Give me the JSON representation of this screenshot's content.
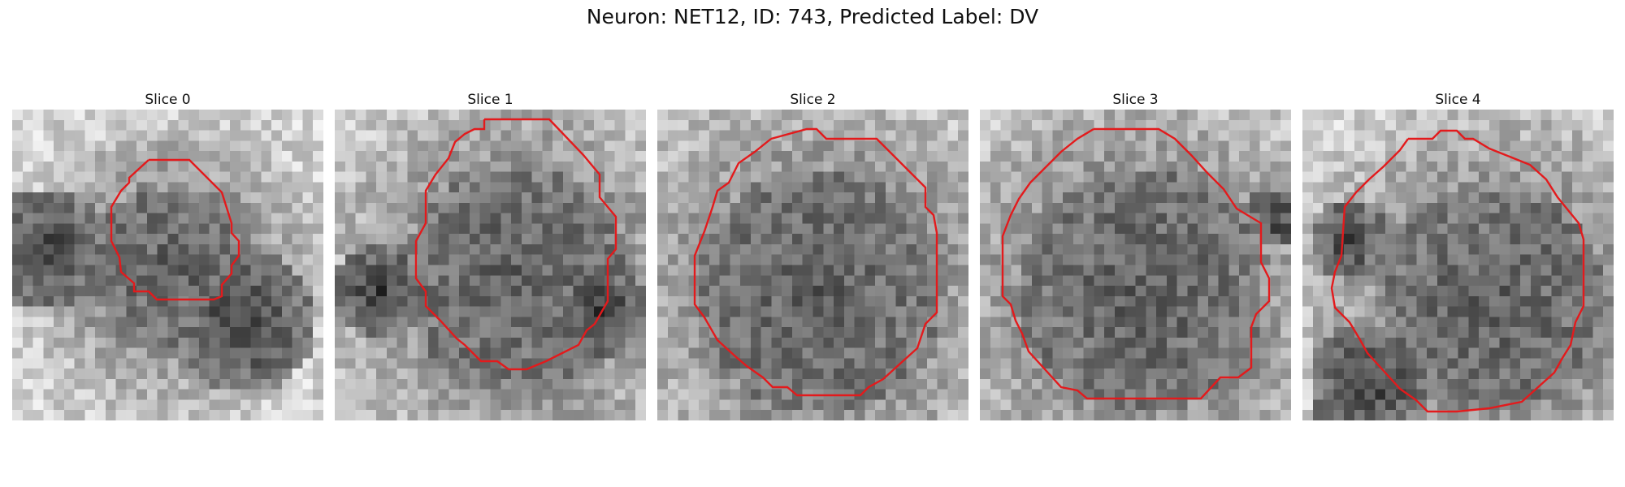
{
  "figure": {
    "title": "Neuron: NET12, ID: 743, Predicted Label: DV"
  },
  "panels": [
    {
      "title": "Slice 0"
    },
    {
      "title": "Slice 1"
    },
    {
      "title": "Slice 2"
    },
    {
      "title": "Slice 3"
    },
    {
      "title": "Slice 4"
    }
  ],
  "colors": {
    "contour": "#e31a1c",
    "background": "#ffffff"
  }
}
